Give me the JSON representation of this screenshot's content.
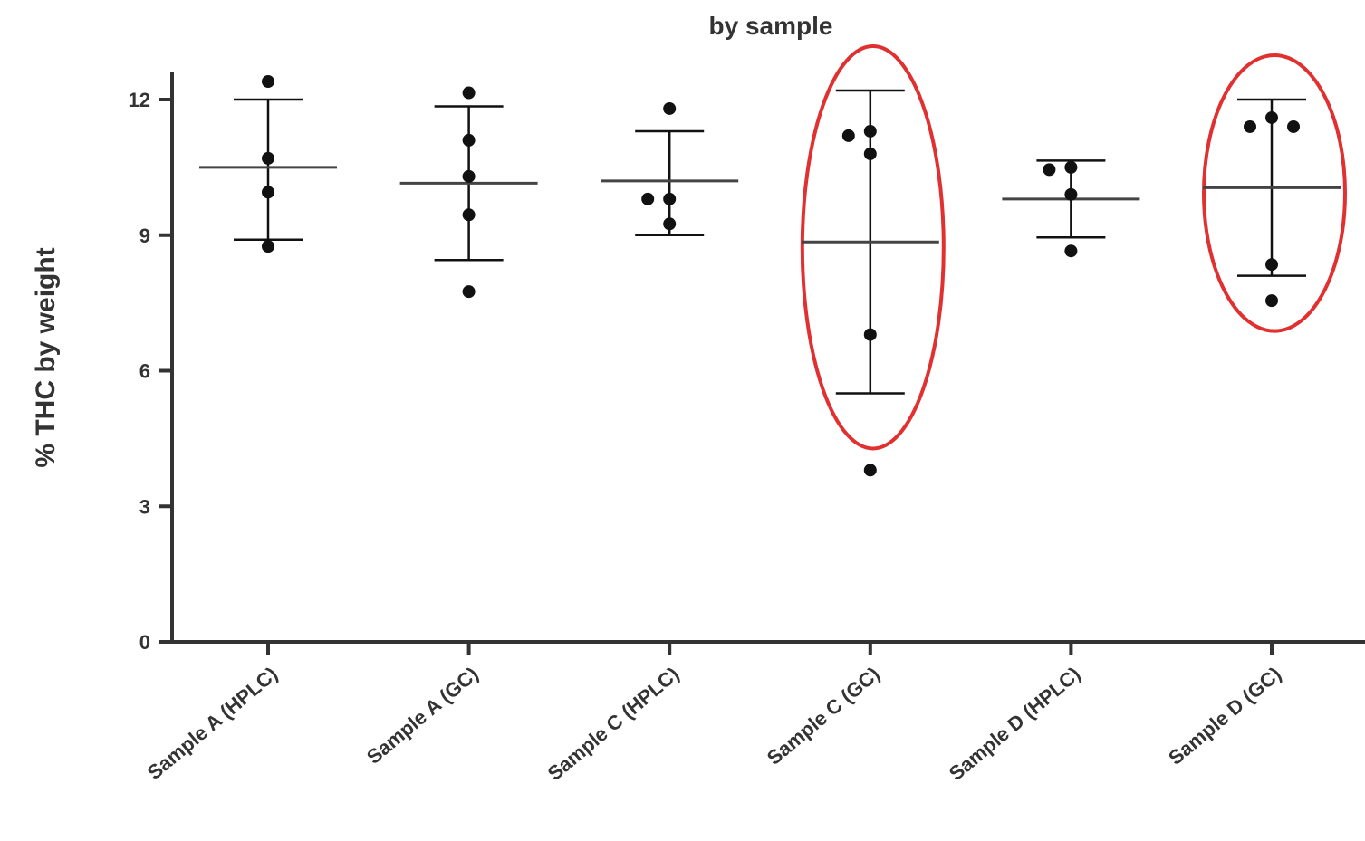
{
  "chart_data": {
    "type": "scatter",
    "title": "by sample",
    "ylabel": "% THC by weight",
    "xlabel": "",
    "ylim": [
      0,
      12.5
    ],
    "yticks": [
      0,
      3,
      6,
      9,
      12
    ],
    "grid": false,
    "categories": [
      "Sample A (HPLC)",
      "Sample A (GC)",
      "Sample C (HPLC)",
      "Sample C (GC)",
      "Sample D (HPLC)",
      "Sample D (GC)"
    ],
    "groups": [
      {
        "category": "Sample A (HPLC)",
        "points": [
          12.4,
          10.7,
          9.95,
          8.75
        ],
        "mean": 10.5,
        "sd_upper": 12.0,
        "sd_lower": 8.9
      },
      {
        "category": "Sample A (GC)",
        "points": [
          12.15,
          11.1,
          10.3,
          9.45,
          7.75
        ],
        "mean": 10.15,
        "sd_upper": 11.85,
        "sd_lower": 8.45
      },
      {
        "category": "Sample C (HPLC)",
        "points": [
          11.8,
          9.8,
          9.8,
          9.25
        ],
        "mean": 10.2,
        "sd_upper": 11.3,
        "sd_lower": 9.0
      },
      {
        "category": "Sample C (GC)",
        "points": [
          11.3,
          11.2,
          10.8,
          6.8,
          3.8
        ],
        "mean": 8.85,
        "sd_upper": 12.2,
        "sd_lower": 5.5
      },
      {
        "category": "Sample D (HPLC)",
        "points": [
          10.5,
          10.45,
          9.9,
          8.65
        ],
        "mean": 9.8,
        "sd_upper": 10.65,
        "sd_lower": 8.95
      },
      {
        "category": "Sample D (GC)",
        "points": [
          11.6,
          11.4,
          11.4,
          8.35,
          7.55
        ],
        "mean": 10.05,
        "sd_upper": 12.0,
        "sd_lower": 8.1
      }
    ],
    "highlighted": [
      "Sample C (GC)",
      "Sample D (GC)"
    ],
    "colors": {
      "axis": "#333333",
      "points": "#111111",
      "lines": "#444444",
      "highlight": "#e03030"
    }
  }
}
